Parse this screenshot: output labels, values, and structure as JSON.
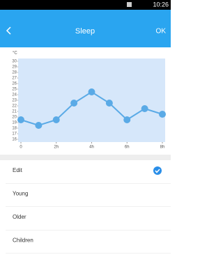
{
  "status_bar": {
    "time": "10:26"
  },
  "header": {
    "title": "Sleep",
    "action": "OK"
  },
  "chart": {
    "type": "line",
    "y_label": "°C",
    "color": "#5aaae6",
    "x": [
      0,
      1,
      2,
      3,
      4,
      5,
      6,
      7,
      8
    ],
    "values": [
      19.5,
      18.5,
      19.5,
      22.5,
      24.5,
      22.5,
      19.5,
      21.5,
      20.5
    ],
    "xlim": [
      0,
      8
    ],
    "xticks": [
      0,
      {
        "value": 2,
        "label": "2h"
      },
      {
        "value": 4,
        "label": "4h"
      },
      {
        "value": 6,
        "label": "6h"
      },
      {
        "value": 8,
        "label": "8h"
      }
    ],
    "ylim": [
      16,
      30
    ],
    "yticks": [
      16,
      17,
      18,
      19,
      20,
      21,
      22,
      23,
      24,
      25,
      26,
      27,
      28,
      29,
      30
    ]
  },
  "list": {
    "items": [
      {
        "label": "Edit",
        "checked": true
      },
      {
        "label": "Young",
        "checked": false
      },
      {
        "label": "Older",
        "checked": false
      },
      {
        "label": "Children",
        "checked": false
      }
    ]
  }
}
